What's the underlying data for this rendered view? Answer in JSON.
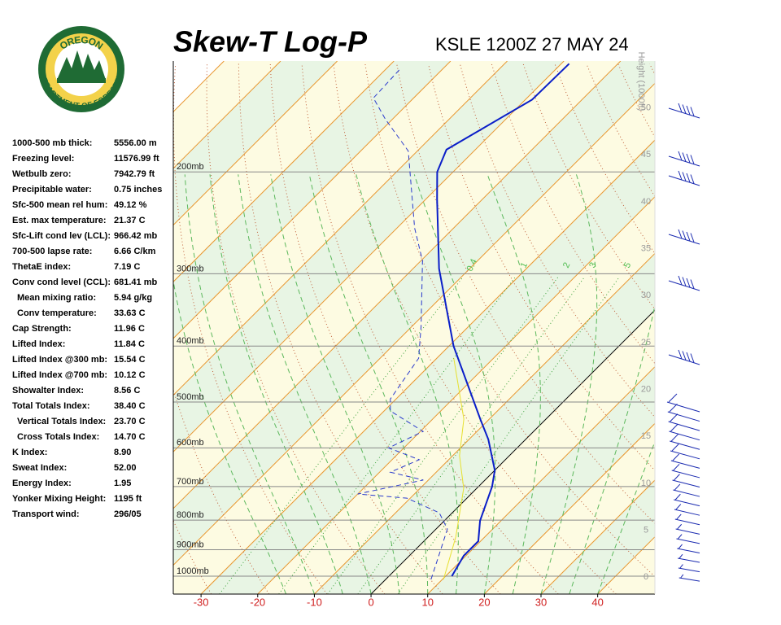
{
  "logo": {
    "top": "OREGON",
    "bottom": "DEPARTMENT OF FORESTRY"
  },
  "stats": {
    "rows": [
      [
        "1000-500 mb thick:",
        "5556.00 m"
      ],
      [
        "Freezing level:",
        "11576.99 ft"
      ],
      [
        "Wetbulb zero:",
        "7942.79 ft"
      ],
      [
        "Precipitable water:",
        "0.75 inches"
      ],
      [
        "Sfc-500 mean rel hum:",
        "49.12 %"
      ],
      [
        "Est. max temperature:",
        "21.37 C"
      ],
      [
        "Sfc-Lift cond lev (LCL):",
        "966.42 mb"
      ],
      [
        "700-500 lapse rate:",
        "6.66 C/km"
      ],
      [
        "ThetaE index:",
        "7.19 C"
      ],
      [
        "Conv cond level (CCL):",
        "681.41 mb"
      ],
      [
        "Mean mixing ratio:",
        "5.94 g/kg"
      ],
      [
        "Conv temperature:",
        "33.63 C"
      ],
      [
        "Cap Strength:",
        "11.96 C"
      ],
      [
        "Lifted Index:",
        "11.84 C"
      ],
      [
        "Lifted Index @300 mb:",
        "15.54 C"
      ],
      [
        "Lifted Index @700 mb:",
        "10.12 C"
      ],
      [
        "Showalter Index:",
        "8.56 C"
      ],
      [
        "Total Totals Index:",
        "38.40 C"
      ],
      [
        "Vertical Totals Index:",
        "23.70 C"
      ],
      [
        "Cross Totals Index:",
        "14.70 C"
      ],
      [
        "K Index:",
        "8.90"
      ],
      [
        "Sweat Index:",
        "52.00"
      ],
      [
        "Energy Index:",
        "1.95"
      ],
      [
        "Yonker Mixing Height:",
        "1195 ft"
      ],
      [
        "Transport wind:",
        "296/05"
      ]
    ]
  },
  "chart_data": {
    "type": "skew-t",
    "title": "Skew-T Log-P",
    "subtitle": "KSLE 1200Z 27 MAY 24",
    "xlim": [
      -34.9,
      50.1
    ],
    "xticks": [
      -30,
      -20,
      -10,
      0,
      10,
      20,
      30,
      40
    ],
    "ylim": [
      1074,
      128.6
    ],
    "ylog": true,
    "yticks": [
      {
        "value": 200,
        "label": "200mb"
      },
      {
        "value": 300,
        "label": "300mb"
      },
      {
        "value": 400,
        "label": "400mb"
      },
      {
        "value": 500,
        "label": "500mb"
      },
      {
        "value": 600,
        "label": "600mb"
      },
      {
        "value": 700,
        "label": "700mb"
      },
      {
        "value": 800,
        "label": "800mb"
      },
      {
        "value": 900,
        "label": "900mb"
      },
      {
        "value": 1000,
        "label": "1000mb"
      }
    ],
    "y2label": "Height (1000ft)",
    "y2lim": [
      -1.8,
      55
    ],
    "y2ticks": [
      0,
      5,
      10,
      15,
      20,
      25,
      30,
      35,
      40,
      45,
      50
    ],
    "mixing_ratio_labels": [
      0.4,
      1,
      2,
      3,
      5
    ],
    "series": [
      {
        "color": "#0a1ec8",
        "style": "solid",
        "pressure": [
          1000,
          922,
          870,
          802,
          700,
          656,
          580,
          535,
          400,
          294,
          223,
          200,
          183,
          150,
          130
        ],
        "values": [
          11.1,
          9.6,
          9.6,
          6.3,
          2.4,
          0,
          -6.6,
          -11.6,
          -29.2,
          -45.4,
          -58.0,
          -62.8,
          -65.1,
          -58.8,
          -58.6
        ]
      },
      {
        "color": "#2a3acc",
        "style": "dashed",
        "pressure": [
          1013,
          913,
          829,
          777,
          733,
          721,
          682,
          661,
          629,
          600,
          562,
          518,
          494,
          420,
          369,
          285,
          250,
          184,
          162,
          149,
          133
        ],
        "values": [
          8.0,
          4.9,
          2.0,
          -2.3,
          -10.6,
          -20.0,
          -10.9,
          -18.1,
          -15.2,
          -22.7,
          -19.5,
          -28.9,
          -31.0,
          -33.2,
          -38.5,
          -49.7,
          -56.9,
          -71.6,
          -81.3,
          -87.1,
          -87.5
        ]
      },
      {
        "color": "#e6e030",
        "style": "solid",
        "pressure": [
          1013,
          856,
          705,
          619,
          535,
          420
        ],
        "values": [
          10.2,
          4.9,
          -2.3,
          -8.8,
          -14.5,
          -27.0
        ]
      }
    ]
  }
}
